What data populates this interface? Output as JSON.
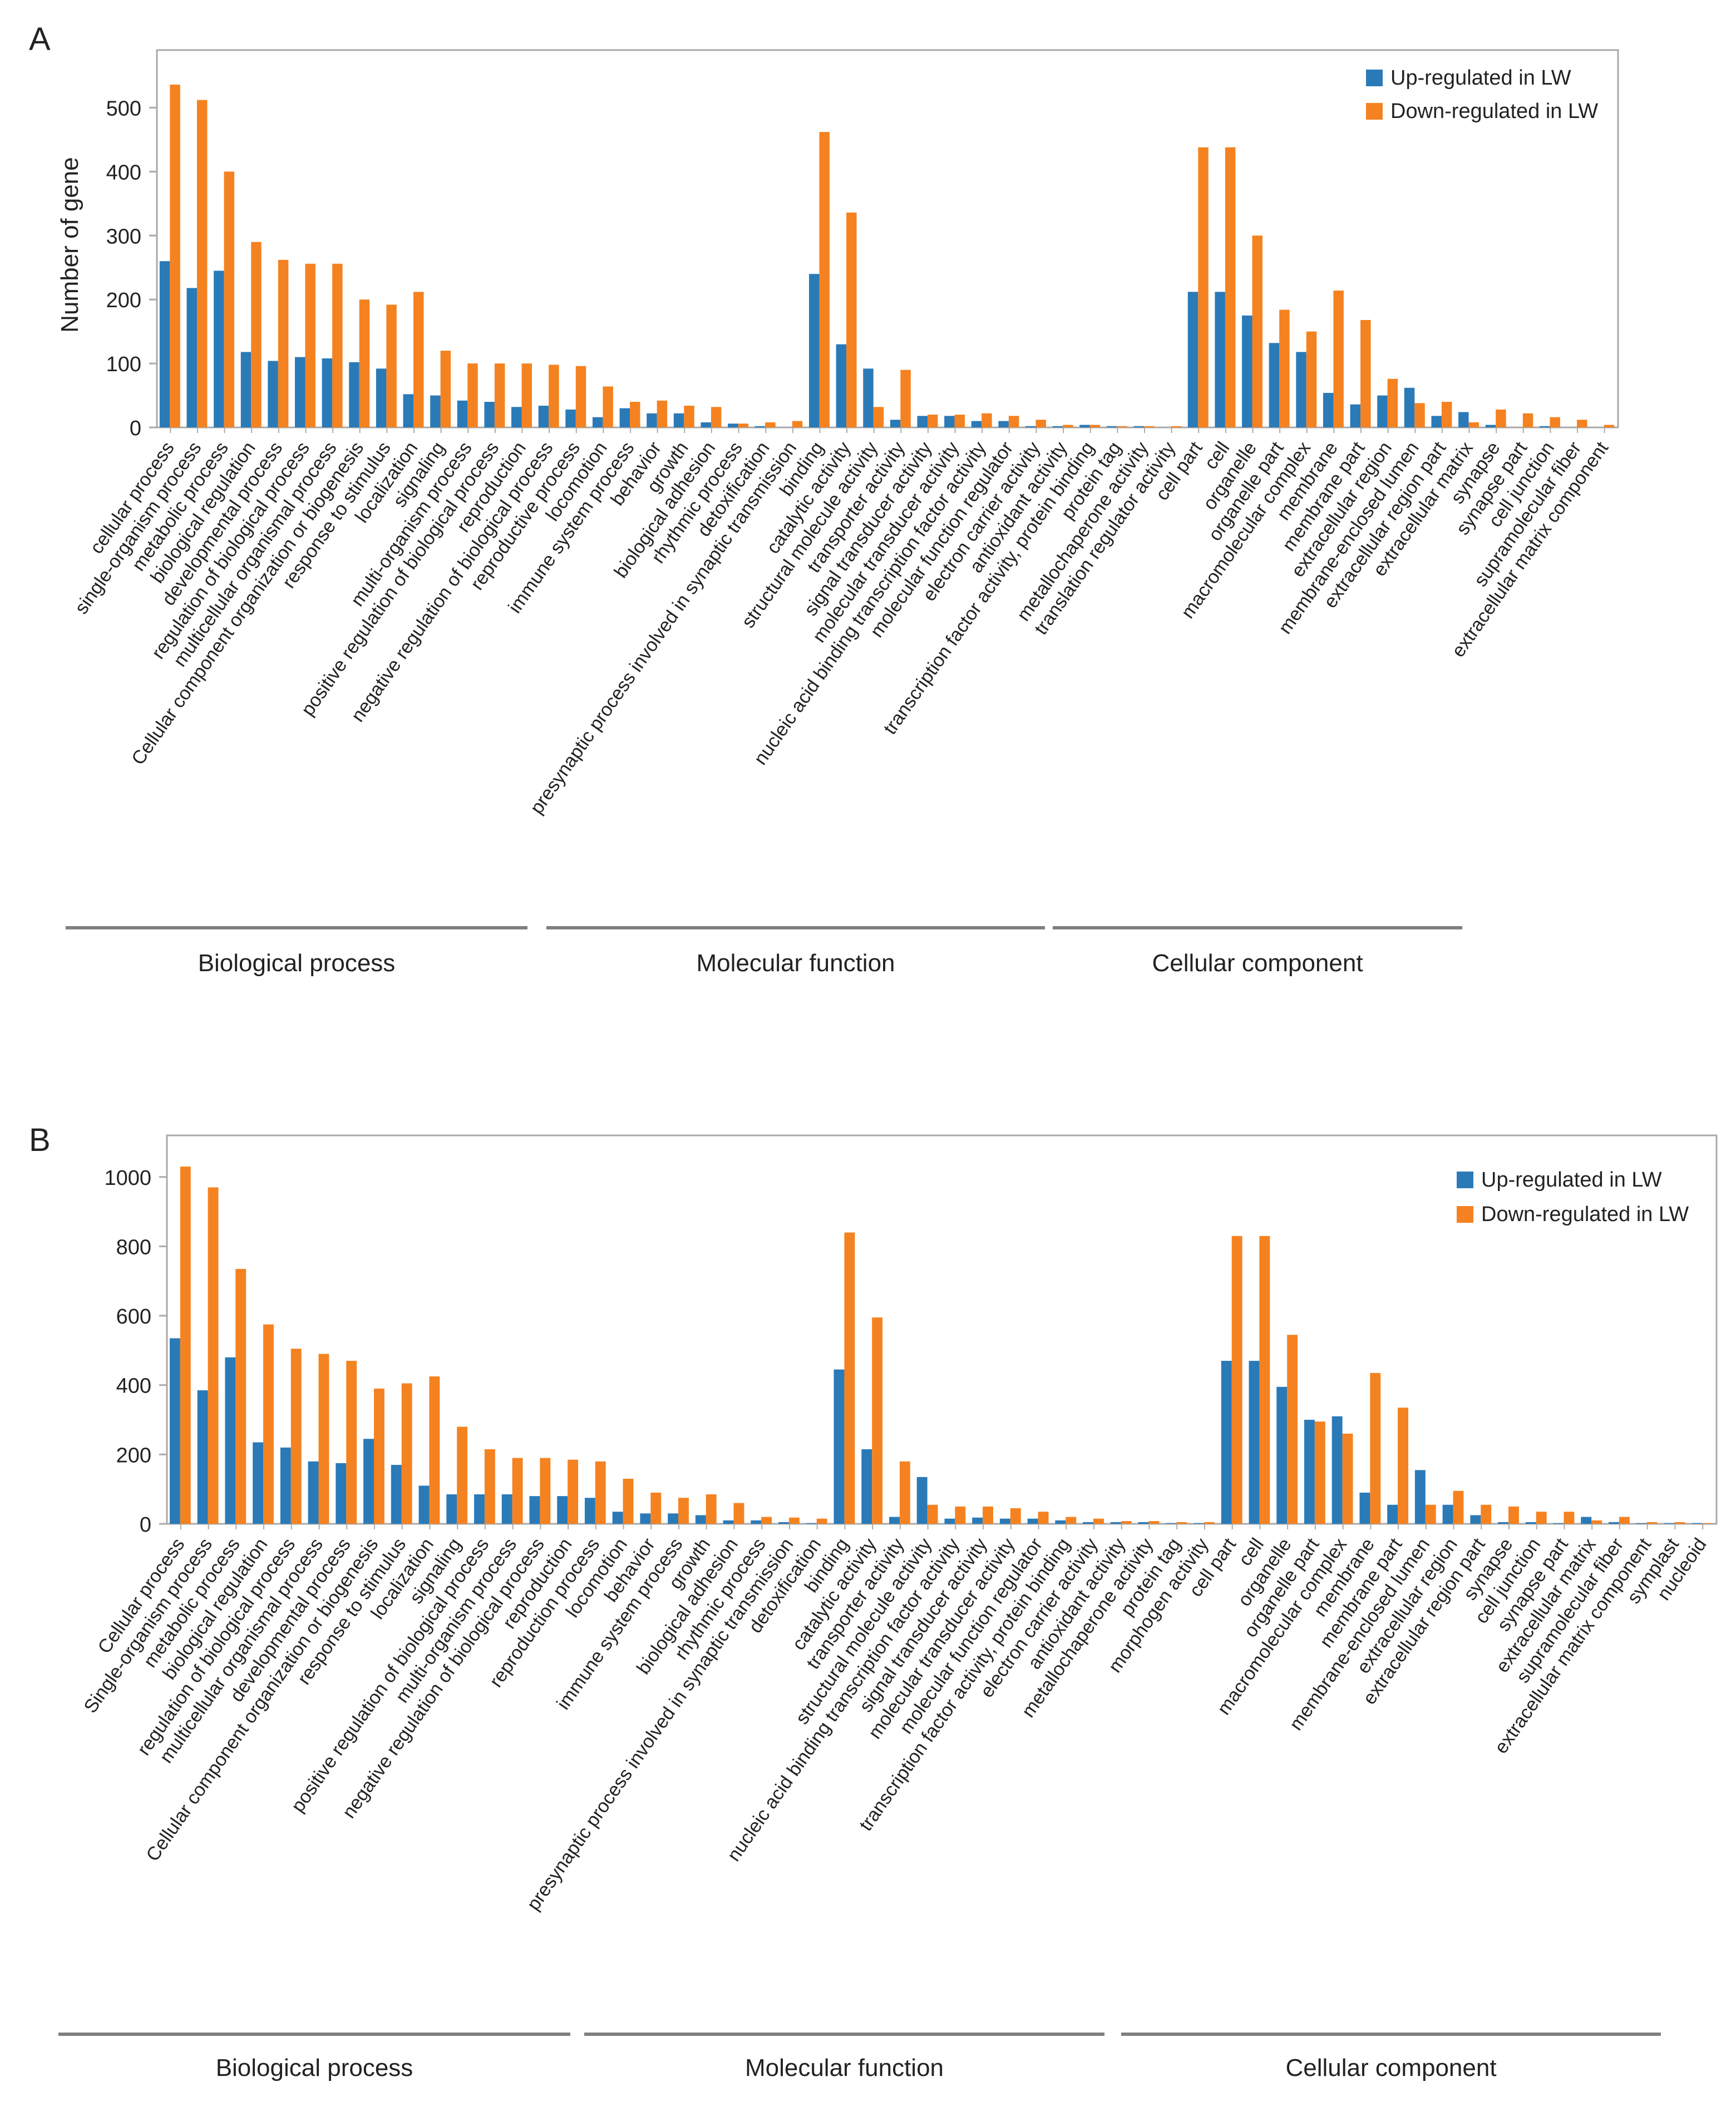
{
  "colors": {
    "up": "#2a7ab8",
    "down": "#f58220",
    "frame": "#aaaaaa",
    "group_line": "#7f7f7f"
  },
  "chart_data": [
    {
      "panel_label": "A",
      "type": "bar",
      "ylabel": "Number of gene",
      "ylim": [
        0,
        590
      ],
      "yticks": [
        0,
        100,
        200,
        300,
        400,
        500
      ],
      "legend": {
        "position": "top-right",
        "entries": [
          "Up-regulated in LW",
          "Down-regulated in LW"
        ]
      },
      "categories": [
        "cellular process",
        "single-organism process",
        "metabolic process",
        "biological regulation",
        "developmental process",
        "regulation of biological process",
        "multicellular organismal process",
        "Cellular component organization or biogenesis",
        "response to stimulus",
        "localization",
        "signaling",
        "multi-organism process",
        "positive regulation of biological process",
        "reproduction",
        "negative regulation of biological process",
        "reproductive process",
        "locomotion",
        "immune system process",
        "behavior",
        "growth",
        "biological adhesion",
        "rhythmic process",
        "detoxification",
        "presynaptic process involved in synaptic transmission",
        "binding",
        "catalytic activity",
        "structural molecule activity",
        "transporter activity",
        "signal transducer activity",
        "molecular transducer activity",
        "nucleic acid binding transcription factor activity",
        "molecular function regulator",
        "electron carrier activity",
        "antioxidant activity",
        "transcription factor activity, protein binding",
        "protein tag",
        "metallochaperone activity",
        "translation regulator activity",
        "cell part",
        "cell",
        "organelle",
        "organelle part",
        "macromolecular complex",
        "membrane",
        "membrane part",
        "extracellular region",
        "membrane-enclosed lumen",
        "extracellular region part",
        "extracellular matrix",
        "synapse",
        "synapse part",
        "cell junction",
        "supramolecular fiber",
        "extracellular matrix component"
      ],
      "series": [
        {
          "name": "Up-regulated in LW",
          "values": [
            260,
            218,
            245,
            118,
            104,
            110,
            108,
            102,
            92,
            52,
            50,
            42,
            40,
            32,
            34,
            28,
            16,
            30,
            22,
            22,
            8,
            6,
            2,
            0,
            240,
            130,
            92,
            12,
            18,
            18,
            10,
            10,
            2,
            2,
            4,
            2,
            2,
            0,
            212,
            212,
            175,
            132,
            118,
            54,
            36,
            50,
            62,
            18,
            24,
            4,
            0,
            2,
            0,
            0
          ]
        },
        {
          "name": "Down-regulated in LW",
          "values": [
            536,
            512,
            400,
            290,
            262,
            256,
            256,
            200,
            192,
            212,
            120,
            100,
            100,
            100,
            98,
            96,
            64,
            40,
            42,
            34,
            32,
            6,
            8,
            10,
            462,
            336,
            32,
            90,
            20,
            20,
            22,
            18,
            12,
            4,
            4,
            2,
            2,
            2,
            438,
            438,
            300,
            184,
            150,
            214,
            168,
            76,
            38,
            40,
            8,
            28,
            22,
            16,
            12,
            4
          ]
        }
      ],
      "groups": [
        {
          "label": "Biological process",
          "count": 24
        },
        {
          "label": "Molecular function",
          "count": 14
        },
        {
          "label": "Cellular component",
          "count": 16
        }
      ]
    },
    {
      "panel_label": "B",
      "type": "bar",
      "ylabel": "",
      "ylim": [
        0,
        1120
      ],
      "yticks": [
        0,
        200,
        400,
        600,
        800,
        1000
      ],
      "legend": {
        "position": "top-right",
        "entries": [
          "Up-regulated in LW",
          "Down-regulated in LW"
        ]
      },
      "categories": [
        "Cellular process",
        "Single-organism process",
        "metabolic process",
        "biological regulation",
        "regulation of biological process",
        "multicellular organismal process",
        "developmental process",
        "Cellular component organization or biogenesis",
        "response to stimulus",
        "localization",
        "signaling",
        "positive regulation of biological process",
        "multi-organism process",
        "negative regulation of biological process",
        "reproduction",
        "reproduction process",
        "locomotion",
        "behavior",
        "immune system process",
        "growth",
        "biological adhesion",
        "rhythmic process",
        "presynaptic process involved in synaptic transmission",
        "detoxification",
        "binding",
        "catalytic activity",
        "transporter activity",
        "structural molecule activity",
        "nucleic acid binding transcription factor activity",
        "signal transducer activity",
        "molecular transducer activity",
        "molecular function regulator",
        "transcription factor activity, protein binding",
        "electron carrier activity",
        "antioxidant activity",
        "metallochaperone activity",
        "protein tag",
        "morphogen activity",
        "cell part",
        "cell",
        "organelle",
        "organelle part",
        "macromolecular complex",
        "membrane",
        "membrane part",
        "membrane-enclosed lumen",
        "extracellular region",
        "extracellular region part",
        "synapse",
        "cell junction",
        "synapse part",
        "extracellular matrix",
        "supramolecular fiber",
        "extracellular matrix component",
        "symplast",
        "nucleoid"
      ],
      "series": [
        {
          "name": "Up-regulated in LW",
          "values": [
            535,
            385,
            480,
            235,
            220,
            180,
            175,
            245,
            170,
            110,
            85,
            85,
            85,
            80,
            80,
            75,
            35,
            30,
            30,
            25,
            10,
            10,
            5,
            2,
            445,
            215,
            20,
            135,
            15,
            18,
            15,
            15,
            10,
            5,
            5,
            5,
            2,
            2,
            470,
            470,
            395,
            300,
            310,
            90,
            55,
            155,
            55,
            25,
            5,
            5,
            2,
            20,
            5,
            2,
            2,
            2
          ]
        },
        {
          "name": "Down-regulated in LW",
          "values": [
            1030,
            970,
            735,
            575,
            505,
            490,
            470,
            390,
            405,
            425,
            280,
            215,
            190,
            190,
            185,
            180,
            130,
            90,
            75,
            85,
            60,
            20,
            18,
            15,
            840,
            595,
            180,
            55,
            50,
            50,
            45,
            35,
            20,
            15,
            8,
            8,
            5,
            5,
            830,
            830,
            545,
            295,
            260,
            435,
            335,
            55,
            95,
            55,
            50,
            35,
            35,
            10,
            20,
            5,
            5,
            2
          ]
        }
      ],
      "groups": [
        {
          "label": "Biological process",
          "count": 24
        },
        {
          "label": "Molecular function",
          "count": 14
        },
        {
          "label": "Cellular component",
          "count": 18
        }
      ]
    }
  ]
}
